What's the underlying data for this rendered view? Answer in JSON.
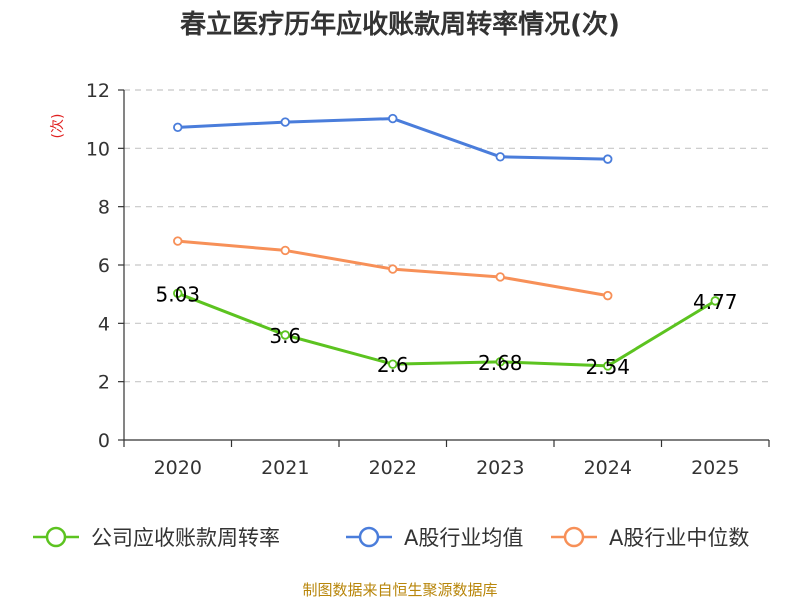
{
  "chart_data": {
    "type": "line",
    "title": "春立医疗历年应收账款周转率情况(次)",
    "ylabel": "(次)",
    "xlabel": "",
    "categories": [
      "2020",
      "2021",
      "2022",
      "2023",
      "2024",
      "2025"
    ],
    "yticks": [
      "0",
      "2",
      "4",
      "6",
      "8",
      "10",
      "12"
    ],
    "ylim": [
      0,
      12
    ],
    "grid": true,
    "legend_position": "bottom",
    "series": [
      {
        "name": "公司应收账款周转率",
        "color": "#5cc320",
        "values": [
          5.03,
          3.6,
          2.6,
          2.68,
          2.54,
          4.77
        ],
        "labels": [
          "5.03",
          "3.6",
          "2.6",
          "2.68",
          "2.54",
          "4.77"
        ]
      },
      {
        "name": "A股行业均值",
        "color": "#4a7ddb",
        "values": [
          10.72,
          10.9,
          11.02,
          9.71,
          9.63,
          null
        ]
      },
      {
        "name": "A股行业中位数",
        "color": "#f79058",
        "values": [
          6.82,
          6.5,
          5.86,
          5.59,
          4.95,
          null
        ]
      }
    ]
  },
  "source": "制图数据来自恒生聚源数据库"
}
